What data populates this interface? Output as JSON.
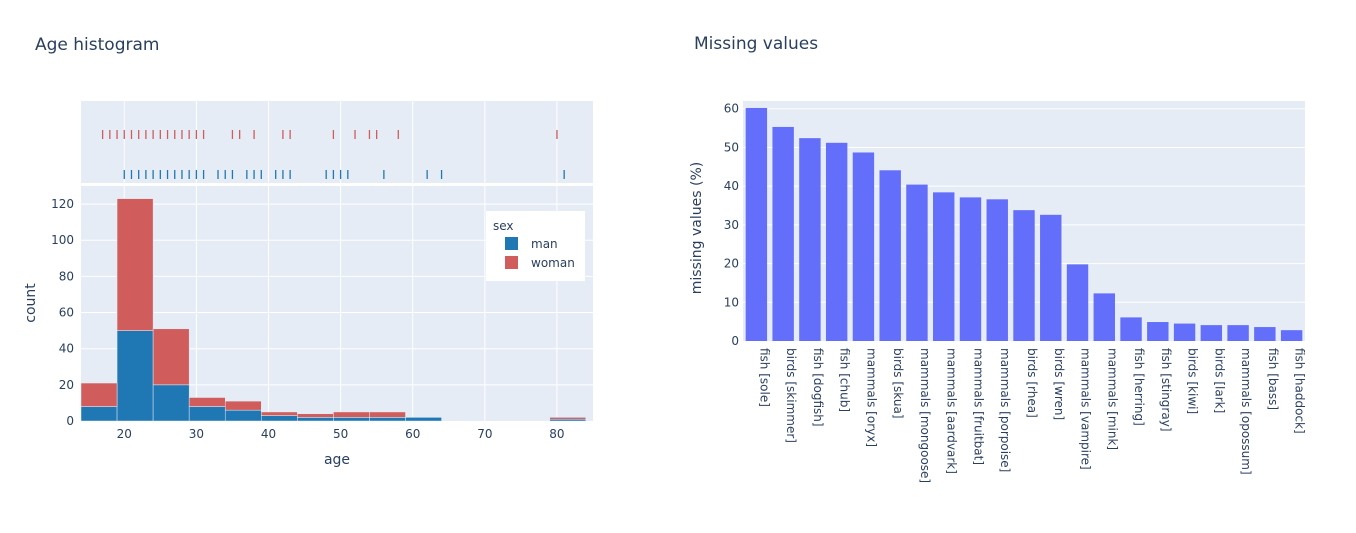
{
  "chart_data": [
    {
      "type": "histogram",
      "title": "Age histogram",
      "xlabel": "age",
      "ylabel": "count",
      "xlim": [
        14,
        85
      ],
      "ylim": [
        0,
        130
      ],
      "xticks": [
        20,
        30,
        40,
        50,
        60,
        70,
        80
      ],
      "yticks": [
        0,
        20,
        40,
        60,
        80,
        100,
        120
      ],
      "barmode": "stack",
      "bin_edges": [
        14,
        19,
        24,
        29,
        34,
        39,
        44,
        49,
        54,
        59,
        64,
        69,
        74,
        79,
        84
      ],
      "legend": {
        "title": "sex",
        "position": "top-right"
      },
      "series": [
        {
          "name": "man",
          "color": "#1f77b4",
          "values": [
            8,
            50,
            20,
            8,
            6,
            3,
            2,
            2,
            2,
            2,
            0,
            0,
            0,
            1
          ]
        },
        {
          "name": "woman",
          "color": "#d05c5c",
          "values": [
            13,
            73,
            31,
            5,
            5,
            2,
            2,
            3,
            3,
            0,
            0,
            0,
            0,
            1
          ]
        }
      ],
      "rug": {
        "woman": [
          17,
          18,
          19,
          20,
          21,
          22,
          23,
          24,
          25,
          26,
          27,
          28,
          29,
          30,
          31,
          35,
          36,
          38,
          42,
          43,
          49,
          52,
          54,
          55,
          58,
          80
        ],
        "man": [
          20,
          21,
          22,
          23,
          24,
          25,
          26,
          27,
          28,
          29,
          30,
          31,
          33,
          34,
          35,
          37,
          38,
          39,
          41,
          42,
          43,
          48,
          49,
          50,
          51,
          56,
          62,
          64,
          81
        ]
      }
    },
    {
      "type": "bar",
      "title": "Missing values",
      "xlabel": "",
      "ylabel": "missing values (%)",
      "ylim": [
        0,
        62
      ],
      "yticks": [
        0,
        10,
        20,
        30,
        40,
        50,
        60
      ],
      "color": "#636efa",
      "categories": [
        "fish [sole]",
        "birds [skimmer]",
        "fish [dogfish]",
        "fish [chub]",
        "mammals [oryx]",
        "birds [skua]",
        "mammals [mongoose]",
        "mammals [aardvark]",
        "mammals [fruitbat]",
        "mammals [porpoise]",
        "birds [rhea]",
        "birds [wren]",
        "mammals [vampire]",
        "mammals [mink]",
        "fish [herring]",
        "fish [stingray]",
        "birds [kiwi]",
        "birds [lark]",
        "mammals [opossum]",
        "fish [bass]",
        "fish [haddock]"
      ],
      "values": [
        60.2,
        55.3,
        52.4,
        51.2,
        48.7,
        44.1,
        40.4,
        38.4,
        37.1,
        36.6,
        33.8,
        32.6,
        19.8,
        12.3,
        6.1,
        4.9,
        4.5,
        4.1,
        4.1,
        3.6,
        2.8
      ]
    }
  ]
}
